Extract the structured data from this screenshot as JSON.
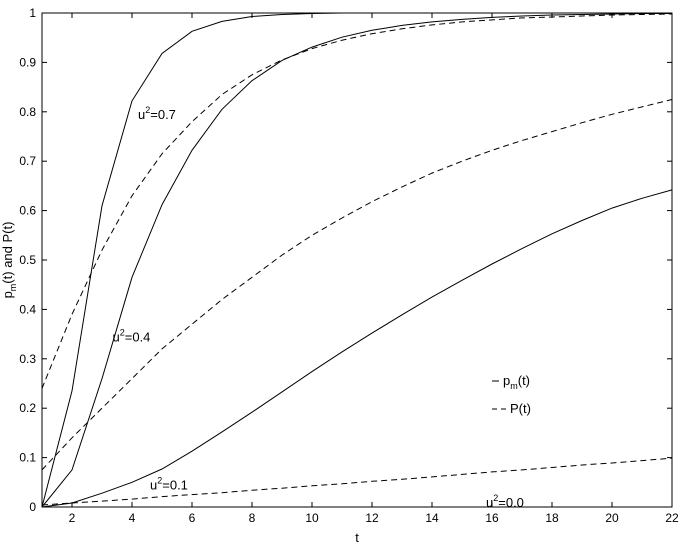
{
  "chart_data": {
    "type": "line",
    "xlabel": "t",
    "ylabel_parts": [
      "p",
      "m",
      "(t) and P(t)"
    ],
    "xlim": [
      1,
      22
    ],
    "ylim": [
      0,
      1
    ],
    "xticks": [
      2,
      4,
      6,
      8,
      10,
      12,
      14,
      16,
      18,
      20,
      22
    ],
    "yticks": [
      0,
      0.1,
      0.2,
      0.3,
      0.4,
      0.5,
      0.6,
      0.7,
      0.8,
      0.9,
      1
    ],
    "grid": false,
    "legend_position": "right, middle",
    "legend": [
      {
        "style": "solid",
        "label_parts": [
          "p",
          "m",
          "(t)"
        ]
      },
      {
        "style": "dashed",
        "label_parts": [
          "P",
          "",
          "(t)"
        ]
      }
    ],
    "series": [
      {
        "style": "solid",
        "u2": "0.7",
        "x": [
          1,
          2,
          3,
          4,
          5,
          6,
          7,
          8,
          9,
          10,
          11,
          12,
          13,
          14,
          15,
          16,
          17,
          18,
          19,
          20,
          21,
          22
        ],
        "y": [
          0,
          0.235,
          0.61,
          0.822,
          0.918,
          0.963,
          0.983,
          0.993,
          0.997,
          0.999,
          1,
          1,
          1,
          1,
          1,
          1,
          1,
          1,
          1,
          1,
          1,
          1
        ]
      },
      {
        "style": "solid",
        "u2": "0.4",
        "x": [
          1,
          2,
          3,
          4,
          5,
          6,
          7,
          8,
          9,
          10,
          11,
          12,
          13,
          14,
          15,
          16,
          17,
          18,
          19,
          20,
          21,
          22
        ],
        "y": [
          0,
          0.075,
          0.26,
          0.465,
          0.612,
          0.722,
          0.805,
          0.863,
          0.904,
          0.931,
          0.951,
          0.965,
          0.975,
          0.982,
          0.987,
          0.991,
          0.994,
          0.996,
          0.997,
          0.998,
          0.999,
          0.999
        ]
      },
      {
        "style": "solid",
        "u2": "0.1",
        "x": [
          1,
          2,
          3,
          4,
          5,
          6,
          7,
          8,
          9,
          10,
          11,
          12,
          13,
          14,
          15,
          16,
          17,
          18,
          19,
          20,
          21,
          22
        ],
        "y": [
          0,
          0.008,
          0.028,
          0.05,
          0.077,
          0.113,
          0.152,
          0.192,
          0.233,
          0.274,
          0.314,
          0.352,
          0.389,
          0.425,
          0.459,
          0.492,
          0.523,
          0.553,
          0.58,
          0.605,
          0.625,
          0.642
        ]
      },
      {
        "style": "solid",
        "u2": "0.0",
        "x": [
          1,
          22
        ],
        "y": [
          0,
          0
        ]
      },
      {
        "style": "dashed",
        "u2": "0.7",
        "x": [
          1,
          2,
          3,
          4,
          5,
          6,
          7,
          8,
          9,
          10,
          11,
          12,
          13,
          14,
          15,
          16,
          17,
          18,
          19,
          20,
          21,
          22
        ],
        "y": [
          0.24,
          0.39,
          0.52,
          0.63,
          0.715,
          0.78,
          0.835,
          0.875,
          0.905,
          0.928,
          0.945,
          0.958,
          0.968,
          0.976,
          0.982,
          0.986,
          0.99,
          0.992,
          0.994,
          0.996,
          0.997,
          0.998
        ]
      },
      {
        "style": "dashed",
        "u2": "0.4",
        "x": [
          1,
          2,
          3,
          4,
          5,
          6,
          7,
          8,
          9,
          10,
          11,
          12,
          13,
          14,
          15,
          16,
          17,
          18,
          19,
          20,
          21,
          22
        ],
        "y": [
          0.075,
          0.14,
          0.2,
          0.26,
          0.32,
          0.37,
          0.42,
          0.465,
          0.51,
          0.55,
          0.585,
          0.618,
          0.648,
          0.676,
          0.7,
          0.722,
          0.742,
          0.76,
          0.778,
          0.795,
          0.81,
          0.825
        ]
      },
      {
        "style": "dashed",
        "u2": "0.1",
        "x": [
          1,
          2,
          3,
          4,
          5,
          6,
          7,
          8,
          9,
          10,
          11,
          12,
          13,
          14,
          15,
          16,
          17,
          18,
          19,
          20,
          21,
          22
        ],
        "y": [
          0.004,
          0.008,
          0.012,
          0.016,
          0.021,
          0.025,
          0.029,
          0.034,
          0.038,
          0.043,
          0.047,
          0.052,
          0.056,
          0.061,
          0.066,
          0.071,
          0.075,
          0.08,
          0.085,
          0.089,
          0.094,
          0.099
        ]
      },
      {
        "style": "dashed",
        "u2": "0.0",
        "x": [
          1,
          22
        ],
        "y": [
          0,
          0
        ]
      }
    ],
    "annotations": [
      {
        "base": "u",
        "sup": "2",
        "text": "=0.7",
        "x": 4.2,
        "y": 0.785
      },
      {
        "base": "u",
        "sup": "2",
        "text": "=0.4",
        "x": 3.35,
        "y": 0.335
      },
      {
        "base": "u",
        "sup": "2",
        "text": "=0.1",
        "x": 4.6,
        "y": 0.035
      },
      {
        "base": "u",
        "sup": "2",
        "text": "=0.0",
        "x": 15.8,
        "y": 0.0
      }
    ]
  }
}
